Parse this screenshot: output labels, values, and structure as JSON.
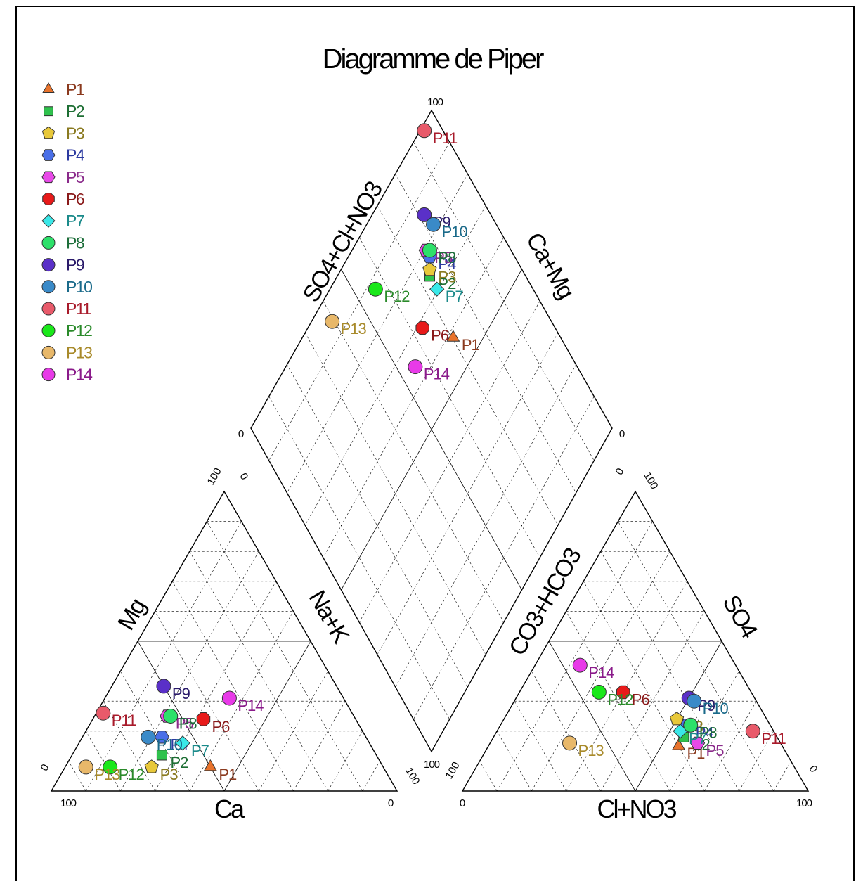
{
  "chart_data": {
    "type": "scatter",
    "subtype": "piper-diagram",
    "title": "Diagramme de Piper",
    "cation_triangle": {
      "bottom_label": "Ca",
      "left_label": "Mg",
      "right_label": "Na+K",
      "ticks": {
        "bottom_left": "100",
        "bottom_right": "0",
        "left_bottom": "0",
        "top_left": "100",
        "top_right": "0",
        "right_bottom": "100"
      }
    },
    "anion_triangle": {
      "bottom_label": "Cl+NO3",
      "left_label": "CO3+HCO3",
      "right_label": "SO4",
      "ticks": {
        "bottom_left": "0",
        "bottom_right": "100",
        "left_bottom": "100",
        "top_left": "0",
        "top_right": "100",
        "right_bottom": "0"
      }
    },
    "diamond": {
      "upper_left_label": "SO4+Cl+NO3",
      "upper_right_label": "Ca+Mg",
      "ticks": {
        "top": "100",
        "left": "0",
        "right": "0",
        "bottom": "100"
      }
    },
    "legend_placement": "top-left",
    "series": [
      {
        "name": "P1",
        "marker": "triangle",
        "color": "#e8732c",
        "text_color": "#8b3a1e",
        "cation": {
          "Ca": 50,
          "Mg": 8,
          "NaK": 42
        },
        "anion": {
          "Cl": 55,
          "SO4": 15,
          "HCO3": 30
        }
      },
      {
        "name": "P2",
        "marker": "square",
        "color": "#2fc24d",
        "text_color": "#1d6e33",
        "cation": {
          "Ca": 62,
          "Mg": 12,
          "NaK": 26
        },
        "anion": {
          "Cl": 55,
          "SO4": 18,
          "HCO3": 27
        }
      },
      {
        "name": "P3",
        "marker": "pentagon",
        "color": "#e8c83a",
        "text_color": "#8a7a20",
        "cation": {
          "Ca": 67,
          "Mg": 8,
          "NaK": 25
        },
        "anion": {
          "Cl": 50,
          "SO4": 24,
          "HCO3": 26
        }
      },
      {
        "name": "P4",
        "marker": "hexagon",
        "color": "#4a6fe8",
        "text_color": "#2c3aa0",
        "cation": {
          "Ca": 59,
          "Mg": 18,
          "NaK": 23
        },
        "anion": {
          "Cl": 54,
          "SO4": 22,
          "HCO3": 24
        }
      },
      {
        "name": "P5",
        "marker": "hexagon",
        "color": "#e84ae8",
        "text_color": "#8a2a8a",
        "cation": {
          "Ca": 54,
          "Mg": 25,
          "NaK": 21
        },
        "anion": {
          "Cl": 60,
          "SO4": 16,
          "HCO3": 24
        }
      },
      {
        "name": "P6",
        "marker": "octagon",
        "color": "#e81a1a",
        "text_color": "#8a1a1a",
        "cation": {
          "Ca": 44,
          "Mg": 24,
          "NaK": 32
        },
        "anion": {
          "Cl": 30,
          "SO4": 33,
          "HCO3": 37
        }
      },
      {
        "name": "P7",
        "marker": "square-rot",
        "color": "#3ae8e8",
        "text_color": "#1a8a8a",
        "cation": {
          "Ca": 54,
          "Mg": 16,
          "NaK": 30
        },
        "anion": {
          "Cl": 53,
          "SO4": 20,
          "HCO3": 27
        }
      },
      {
        "name": "P8",
        "marker": "circle",
        "color": "#2de06a",
        "text_color": "#1d6e3a",
        "cation": {
          "Ca": 53,
          "Mg": 25,
          "NaK": 22
        },
        "anion": {
          "Cl": 55,
          "SO4": 22,
          "HCO3": 23
        }
      },
      {
        "name": "P9",
        "marker": "circle",
        "color": "#5a30c8",
        "text_color": "#2a1a6a",
        "cation": {
          "Ca": 50,
          "Mg": 35,
          "NaK": 15
        },
        "anion": {
          "Cl": 50,
          "SO4": 31,
          "HCO3": 19
        }
      },
      {
        "name": "P10",
        "marker": "circle",
        "color": "#3a8ac8",
        "text_color": "#1a6a8a",
        "cation": {
          "Ca": 63,
          "Mg": 18,
          "NaK": 19
        },
        "anion": {
          "Cl": 52,
          "SO4": 30,
          "HCO3": 18
        }
      },
      {
        "name": "P11",
        "marker": "circle",
        "color": "#e85a6a",
        "text_color": "#a81a2a",
        "cation": {
          "Ca": 72,
          "Mg": 26,
          "NaK": 2
        },
        "anion": {
          "Cl": 74,
          "SO4": 20,
          "HCO3": 6
        }
      },
      {
        "name": "P12",
        "marker": "circle",
        "color": "#1ae81a",
        "text_color": "#2a8a2a",
        "cation": {
          "Ca": 79,
          "Mg": 8,
          "NaK": 13
        },
        "anion": {
          "Cl": 23,
          "SO4": 33,
          "HCO3": 44
        }
      },
      {
        "name": "P13",
        "marker": "circle",
        "color": "#e8b86a",
        "text_color": "#a88a2a",
        "cation": {
          "Ca": 86,
          "Mg": 8,
          "NaK": 6
        },
        "anion": {
          "Cl": 23,
          "SO4": 16,
          "HCO3": 61
        }
      },
      {
        "name": "P14",
        "marker": "circle",
        "color": "#e83ae8",
        "text_color": "#8a1a8a",
        "cation": {
          "Ca": 33,
          "Mg": 31,
          "NaK": 36
        },
        "anion": {
          "Cl": 13,
          "SO4": 42,
          "HCO3": 45
        }
      }
    ]
  }
}
